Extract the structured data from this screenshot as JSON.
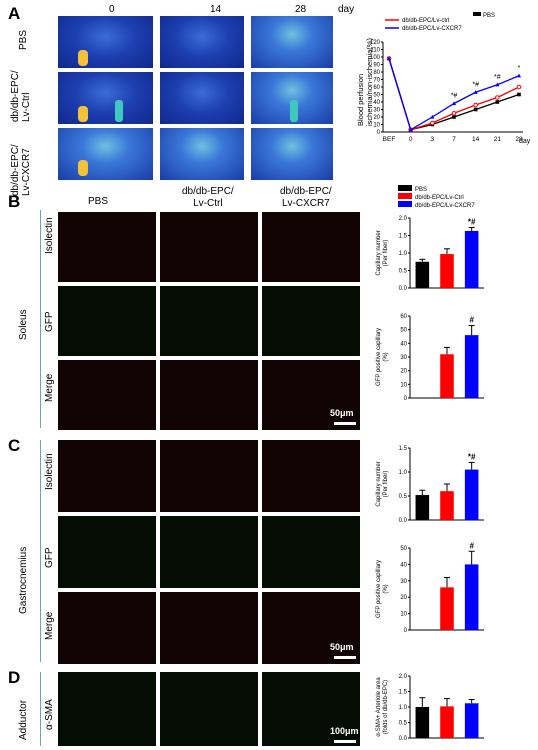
{
  "panels": {
    "A": "A",
    "B": "B",
    "C": "C",
    "D": "D"
  },
  "panelA": {
    "days": [
      "0",
      "14",
      "28"
    ],
    "day_unit": "day",
    "rows": [
      "PBS",
      "db/db-EPC/\nLv-Ctrl",
      "db/db-EPC/\nLv-CXCR7"
    ]
  },
  "columns": [
    "PBS",
    "db/db-EPC/\nLv-Ctrl",
    "db/db-EPC/\nLv-CXCR7"
  ],
  "tissues": {
    "soleus": "Soleus",
    "gastrocnemius": "Gastrocnemius",
    "adductor": "Adductor"
  },
  "stains": {
    "isolectin": "Isolectin",
    "gfp": "GFP",
    "merge": "Merge",
    "sma": "α-SMA"
  },
  "scalebars": {
    "b": "50μm",
    "c": "50μm",
    "d": "100μm"
  },
  "colors": {
    "pbs": "#000000",
    "ctrl": "#ff0000",
    "cxcr7": "#0000ff"
  },
  "chart_data": [
    {
      "type": "line",
      "ylabel": "Blood perfusion\nischemia/non-ischemia(%)",
      "xlabel": "day",
      "x": [
        "BEF",
        "0",
        "3",
        "7",
        "14",
        "21",
        "28"
      ],
      "ylim": [
        0,
        120
      ],
      "yticks": [
        0,
        10,
        20,
        30,
        40,
        50,
        60,
        70,
        80,
        90,
        100,
        110,
        120
      ],
      "series": [
        {
          "name": "PBS",
          "values": [
            98,
            3,
            10,
            20,
            30,
            40,
            50
          ]
        },
        {
          "name": "db/db-EPC/Lv-ctrl",
          "values": [
            98,
            3,
            12,
            25,
            36,
            46,
            60
          ]
        },
        {
          "name": "db/db-EPC/Lv-CXCR7",
          "values": [
            98,
            3,
            20,
            38,
            53,
            63,
            75
          ]
        }
      ],
      "annotations": [
        "*#",
        "*#",
        "*#",
        "*"
      ]
    },
    {
      "type": "bar",
      "legend": [
        "PBS",
        "db/db-EPC/Lv-Ctrl",
        "db/db-EPC/Lv-CXCR7"
      ],
      "ylabel": "Capillary number\n(Per fiber)",
      "categories": [
        "PBS",
        "db/db-EPC/Lv-Ctrl",
        "db/db-EPC/Lv-CXCR7"
      ],
      "values": [
        0.75,
        0.97,
        1.63
      ],
      "errors": [
        0.07,
        0.15,
        0.1
      ],
      "ylim": [
        0,
        2.0
      ],
      "yticks": [
        "0.0",
        "0.5",
        "1.0",
        "1.5",
        "2.0"
      ],
      "annotation": "*#"
    },
    {
      "type": "bar",
      "ylabel": "GFP positive capillary\n(%)",
      "categories": [
        "PBS",
        "db/db-EPC/Lv-Ctrl",
        "db/db-EPC/Lv-CXCR7"
      ],
      "values": [
        0,
        32,
        46
      ],
      "errors": [
        0,
        5,
        7
      ],
      "ylim": [
        0,
        60
      ],
      "yticks": [
        "0",
        "10",
        "20",
        "30",
        "40",
        "50",
        "60"
      ],
      "annotation": "#"
    },
    {
      "type": "bar",
      "ylabel": "Capillary number\n(Per fiber)",
      "categories": [
        "PBS",
        "db/db-EPC/Lv-Ctrl",
        "db/db-EPC/Lv-CXCR7"
      ],
      "values": [
        0.52,
        0.6,
        1.05
      ],
      "errors": [
        0.1,
        0.15,
        0.15
      ],
      "ylim": [
        0,
        1.5
      ],
      "yticks": [
        "0.0",
        "0.5",
        "1.0",
        "1.5"
      ],
      "annotation": "*#"
    },
    {
      "type": "bar",
      "ylabel": "GFP positive capillary\n(%)",
      "categories": [
        "PBS",
        "db/db-EPC/Lv-Ctrl",
        "db/db-EPC/Lv-CXCR7"
      ],
      "values": [
        0,
        26,
        40
      ],
      "errors": [
        0,
        6,
        8
      ],
      "ylim": [
        0,
        50
      ],
      "yticks": [
        "0",
        "10",
        "20",
        "30",
        "40",
        "50"
      ],
      "annotation": "#"
    },
    {
      "type": "bar",
      "ylabel": "α-SMA+ Arteriole area\n(folds of db/db-EPC)",
      "categories": [
        "PBS",
        "db/db-EPC/Lv-Ctrl",
        "db/db-EPC/Lv-CXCR7"
      ],
      "values": [
        1.0,
        1.02,
        1.12
      ],
      "errors": [
        0.3,
        0.25,
        0.12
      ],
      "ylim": [
        0,
        2.0
      ],
      "yticks": [
        "0.0",
        "0.5",
        "1.0",
        "1.5",
        "2.0"
      ]
    }
  ]
}
